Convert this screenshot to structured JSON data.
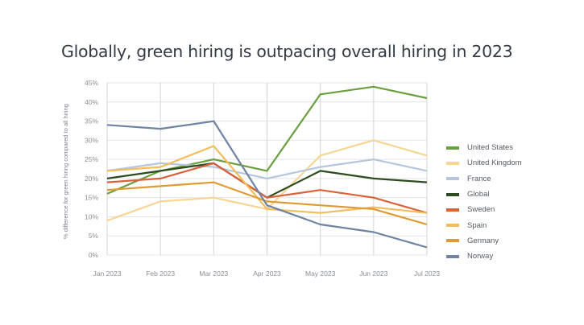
{
  "chart_data": {
    "type": "line",
    "title": "Globally, green hiring is outpacing overall hiring in 2023",
    "xlabel": "",
    "ylabel": "% difference for green hiring compared to all hiring",
    "ylim": [
      0,
      45
    ],
    "yticks": [
      "0%",
      "5%",
      "10%",
      "15%",
      "20%",
      "25%",
      "30%",
      "35%",
      "40%",
      "45%"
    ],
    "ytick_values": [
      0,
      5,
      10,
      15,
      20,
      25,
      30,
      35,
      40,
      45
    ],
    "categories": [
      "Jan 2023",
      "Feb 2023",
      "Mar 2023",
      "Apr 2023",
      "May 2023",
      "Jun 2023",
      "Jul 2023"
    ],
    "grid": true,
    "legend_position": "right",
    "series": [
      {
        "name": "United States",
        "color": "#6a9e3f",
        "values": [
          16,
          22,
          25,
          22,
          42,
          44,
          41
        ]
      },
      {
        "name": "United Kingdom",
        "color": "#f7d593",
        "values": [
          9,
          14,
          15,
          12,
          26,
          30,
          26
        ]
      },
      {
        "name": "France",
        "color": "#b6c6dc",
        "values": [
          22,
          24,
          23,
          20,
          23,
          25,
          22
        ]
      },
      {
        "name": "Global",
        "color": "#2e4a1f",
        "values": [
          20,
          22,
          24,
          15,
          22,
          20,
          19
        ]
      },
      {
        "name": "Sweden",
        "color": "#d9623b",
        "values": [
          19,
          20,
          24,
          15,
          17,
          15,
          11
        ]
      },
      {
        "name": "Spain",
        "color": "#f3bd5c",
        "values": [
          22,
          23,
          28.5,
          12,
          11,
          12.5,
          11
        ]
      },
      {
        "name": "Germany",
        "color": "#de9b35",
        "values": [
          17,
          18,
          19,
          14,
          13,
          12,
          8
        ]
      },
      {
        "name": "Norway",
        "color": "#6f83a3",
        "values": [
          34,
          33,
          35,
          13,
          8,
          6,
          2
        ]
      }
    ]
  }
}
